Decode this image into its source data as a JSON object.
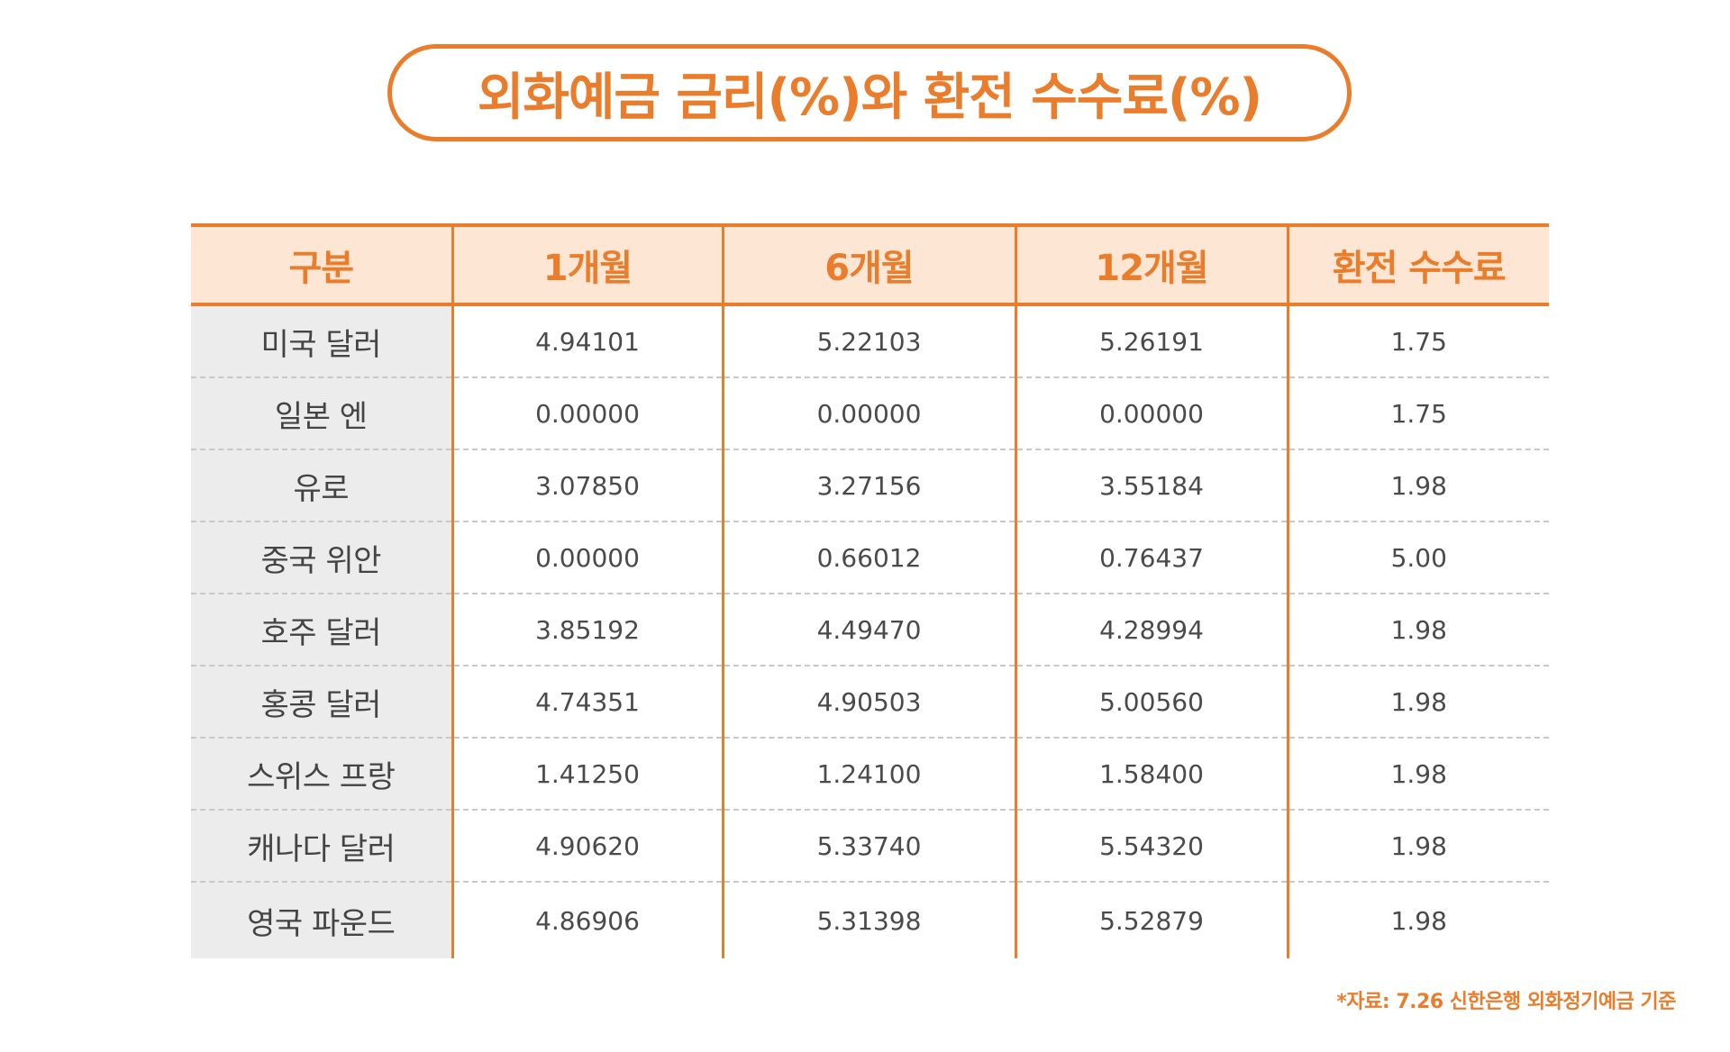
{
  "title": "외화예금 금리(%)와 환전 수수료(%)",
  "chart_data": {
    "type": "table",
    "columns": [
      "구분",
      "1개월",
      "6개월",
      "12개월",
      "환전 수수료"
    ],
    "rows": [
      {
        "label": "미국 달러",
        "values": [
          "4.94101",
          "5.22103",
          "5.26191",
          "1.75"
        ]
      },
      {
        "label": "일본 엔",
        "values": [
          "0.00000",
          "0.00000",
          "0.00000",
          "1.75"
        ]
      },
      {
        "label": "유로",
        "values": [
          "3.07850",
          "3.27156",
          "3.55184",
          "1.98"
        ]
      },
      {
        "label": "중국 위안",
        "values": [
          "0.00000",
          "0.66012",
          "0.76437",
          "5.00"
        ]
      },
      {
        "label": "호주 달러",
        "values": [
          "3.85192",
          "4.49470",
          "4.28994",
          "1.98"
        ]
      },
      {
        "label": "홍콩 달러",
        "values": [
          "4.74351",
          "4.90503",
          "5.00560",
          "1.98"
        ]
      },
      {
        "label": "스위스 프랑",
        "values": [
          "1.41250",
          "1.24100",
          "1.58400",
          "1.98"
        ]
      },
      {
        "label": "캐나다 달러",
        "values": [
          "4.90620",
          "5.33740",
          "5.54320",
          "1.98"
        ]
      },
      {
        "label": "영국 파운드",
        "values": [
          "4.86906",
          "5.31398",
          "5.52879",
          "1.98"
        ]
      }
    ]
  },
  "source_note": "*자료: 7.26 신한은행 외화정기예금 기준",
  "colors": {
    "accent": "#ea7d2c",
    "header_bg": "#fde6d3",
    "label_bg": "#ececec",
    "text": "#4a4a4a",
    "divider": "#c8c8c8"
  }
}
